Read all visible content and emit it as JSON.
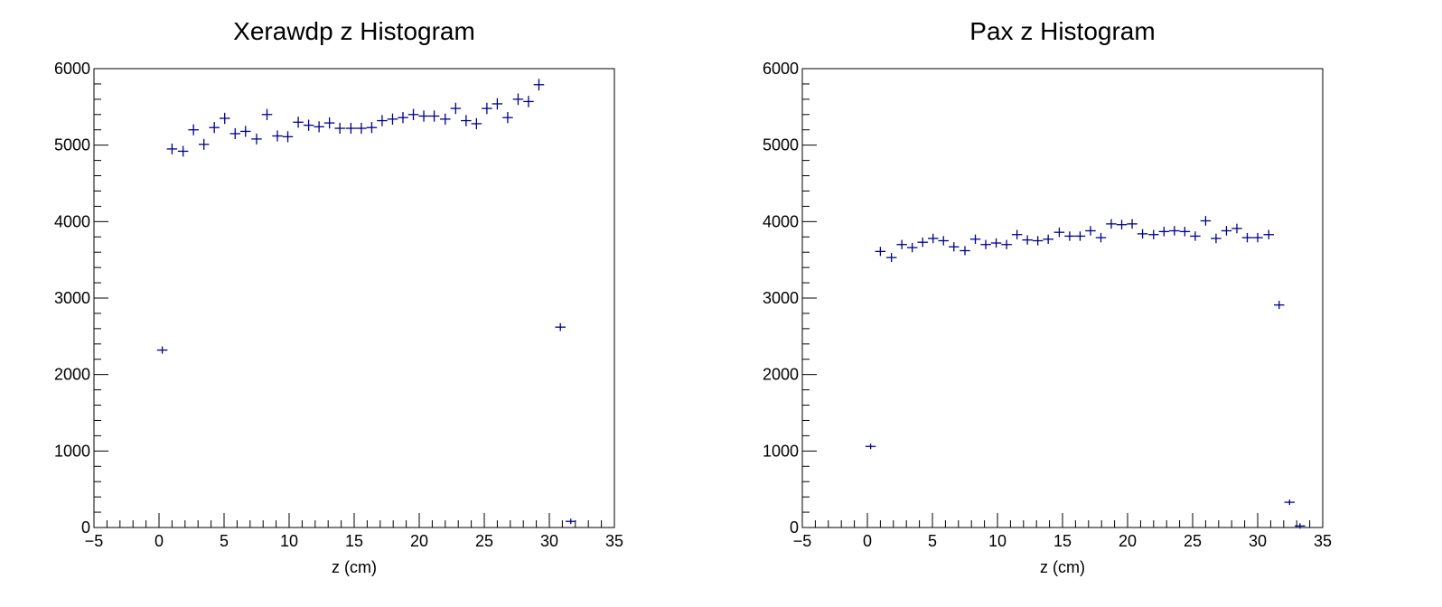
{
  "chart_data": [
    {
      "type": "scatter",
      "title": "Xerawdp z Histogram",
      "xlabel": "z (cm)",
      "ylabel": "",
      "xlim": [
        -5,
        35
      ],
      "ylim": [
        0,
        6000
      ],
      "x_ticks": [
        "−5",
        "0",
        "5",
        "10",
        "15",
        "20",
        "25",
        "30",
        "35"
      ],
      "y_ticks": [
        "0",
        "1000",
        "2000",
        "3000",
        "4000",
        "5000",
        "6000"
      ],
      "marker_color": "#00008b",
      "bin_width": 0.8,
      "series": [
        {
          "x": [
            0.25,
            1.0,
            1.85,
            2.65,
            3.45,
            4.25,
            5.05,
            5.85,
            6.65,
            7.5,
            8.3,
            9.1,
            9.9,
            10.7,
            11.5,
            12.3,
            13.1,
            13.9,
            14.75,
            15.55,
            16.35,
            17.15,
            17.95,
            18.75,
            19.55,
            20.35,
            21.15,
            22.0,
            22.8,
            23.6,
            24.4,
            25.2,
            26.0,
            26.8,
            27.6,
            28.4,
            29.2,
            30.85,
            31.65
          ],
          "y": [
            2320,
            4950,
            4920,
            5200,
            5010,
            5230,
            5350,
            5150,
            5180,
            5080,
            5400,
            5120,
            5110,
            5300,
            5260,
            5240,
            5290,
            5220,
            5220,
            5220,
            5230,
            5320,
            5340,
            5360,
            5400,
            5380,
            5380,
            5340,
            5480,
            5320,
            5280,
            5480,
            5540,
            5360,
            5600,
            5570,
            5790,
            2620,
            80
          ]
        }
      ]
    },
    {
      "type": "scatter",
      "title": "Pax z Histogram",
      "xlabel": "z (cm)",
      "ylabel": "",
      "xlim": [
        -5,
        35
      ],
      "ylim": [
        0,
        6000
      ],
      "x_ticks": [
        "−5",
        "0",
        "5",
        "10",
        "15",
        "20",
        "25",
        "30",
        "35"
      ],
      "y_ticks": [
        "0",
        "1000",
        "2000",
        "3000",
        "4000",
        "5000",
        "6000"
      ],
      "marker_color": "#00008b",
      "bin_width": 0.8,
      "series": [
        {
          "x": [
            0.25,
            1.0,
            1.85,
            2.65,
            3.45,
            4.25,
            5.05,
            5.85,
            6.65,
            7.5,
            8.3,
            9.1,
            9.9,
            10.7,
            11.5,
            12.3,
            13.1,
            13.9,
            14.75,
            15.55,
            16.35,
            17.15,
            17.95,
            18.75,
            19.55,
            20.35,
            21.15,
            22.0,
            22.8,
            23.6,
            24.4,
            25.2,
            26.0,
            26.8,
            27.6,
            28.4,
            29.2,
            30.0,
            30.85,
            31.65,
            32.45,
            33.25
          ],
          "y": [
            1060,
            3610,
            3530,
            3700,
            3660,
            3730,
            3780,
            3750,
            3670,
            3620,
            3770,
            3700,
            3720,
            3700,
            3830,
            3760,
            3750,
            3770,
            3860,
            3810,
            3810,
            3880,
            3790,
            3970,
            3960,
            3970,
            3840,
            3830,
            3870,
            3880,
            3870,
            3810,
            4010,
            3780,
            3880,
            3910,
            3790,
            3790,
            3830,
            2910,
            330,
            20
          ]
        }
      ]
    }
  ]
}
